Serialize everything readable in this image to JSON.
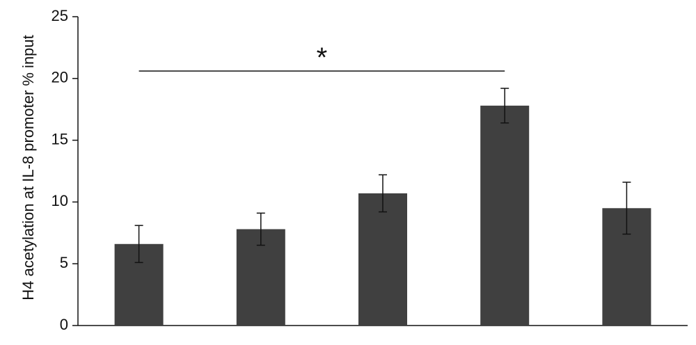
{
  "chart_data": {
    "type": "bar",
    "title": "",
    "xlabel": "",
    "ylabel": "H4 acetylation at IL-8 promoter % input",
    "categories": [
      "",
      "",
      "",
      "",
      ""
    ],
    "values": [
      6.6,
      7.8,
      10.7,
      17.8,
      9.5
    ],
    "errors": [
      1.5,
      1.3,
      1.5,
      1.4,
      2.1
    ],
    "ylim": [
      0,
      25
    ],
    "yticks": [
      0,
      5,
      10,
      15,
      20,
      25
    ],
    "ytick_labels": [
      "0",
      "5",
      "10",
      "15",
      "20",
      "25"
    ],
    "grid": false,
    "bar_color": "#404040",
    "annotations": [
      {
        "text": "*",
        "from_bar": 1,
        "to_bar": 4,
        "y": 20.6
      }
    ]
  }
}
